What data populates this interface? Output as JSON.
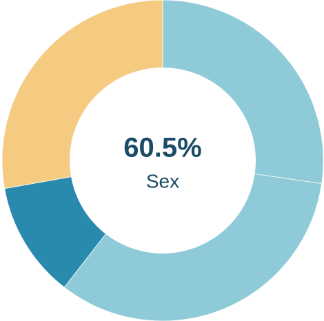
{
  "chart_data": {
    "type": "pie",
    "variant": "donut",
    "center": {
      "value": "60.5%",
      "label": "Sex"
    },
    "slices": [
      {
        "value": 27.3,
        "color": "#8ecad8"
      },
      {
        "value": 33.2,
        "color": "#8ecad8"
      },
      {
        "value": 11.7,
        "color": "#2a8aad"
      },
      {
        "value": 27.8,
        "color": "#f5cb82"
      }
    ],
    "start_angle_deg": 0,
    "direction": "clockwise",
    "legend": "none",
    "colors": {
      "center_text": "#1b4b66",
      "separator": "#ffffff"
    }
  }
}
